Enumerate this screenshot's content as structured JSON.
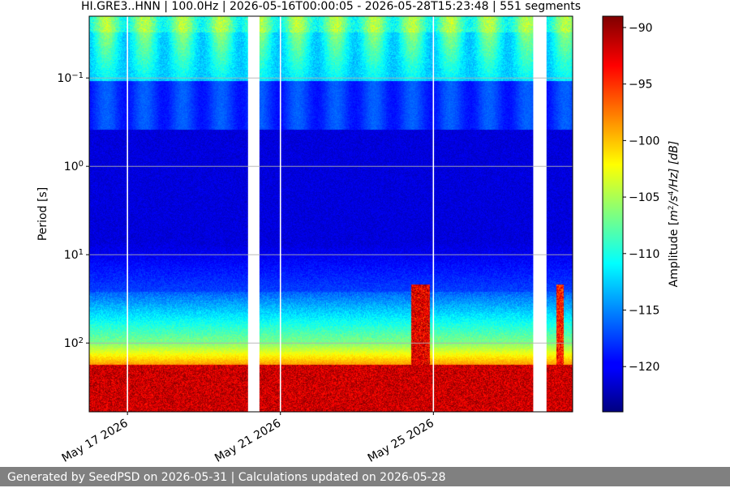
{
  "chart_data": {
    "type": "heatmap",
    "title": "HI.GRE3..HNN | 100.0Hz | 2026-05-16T00:00:05 - 2026-05-28T15:23:48 | 551 segments",
    "ylabel": "Period [s]",
    "y_scale": "log",
    "y_inverted": true,
    "ylim": [
      0.02,
      600
    ],
    "y_ticks": [
      {
        "value": 0.1,
        "base": "10",
        "exp": "−1"
      },
      {
        "value": 1,
        "base": "10",
        "exp": "0"
      },
      {
        "value": 10,
        "base": "10",
        "exp": "1"
      },
      {
        "value": 100,
        "base": "10",
        "exp": "2"
      }
    ],
    "x_range": [
      "2026-05-16T00:00:05",
      "2026-05-28T15:23:48"
    ],
    "x_ticks": [
      {
        "date": "2026-05-17",
        "label": "May 17 2026"
      },
      {
        "date": "2026-05-21",
        "label": "May 21 2026"
      },
      {
        "date": "2026-05-25",
        "label": "May 25 2026"
      }
    ],
    "data_gaps": [
      {
        "start": "2026-05-20T03:40:00",
        "end": "2026-05-20T10:50:00"
      },
      {
        "start": "2026-05-27T14:40:00",
        "end": "2026-05-27T23:00:00"
      }
    ],
    "grid": true,
    "colorbar": {
      "colormap": "jet",
      "range": [
        -124,
        -89
      ],
      "ticks": [
        -90,
        -95,
        -100,
        -105,
        -110,
        -115,
        -120
      ],
      "tick_labels": [
        "−90",
        "−95",
        "−100",
        "−105",
        "−110",
        "−115",
        "−120"
      ],
      "label_prefix": "Amplitude [",
      "label_unit": "m",
      "label_suffix": "/Hz] [dB]"
    }
  },
  "footer": {
    "text": "Generated by SeedPSD on 2026-05-31 | Calculations updated on 2026-05-28"
  }
}
